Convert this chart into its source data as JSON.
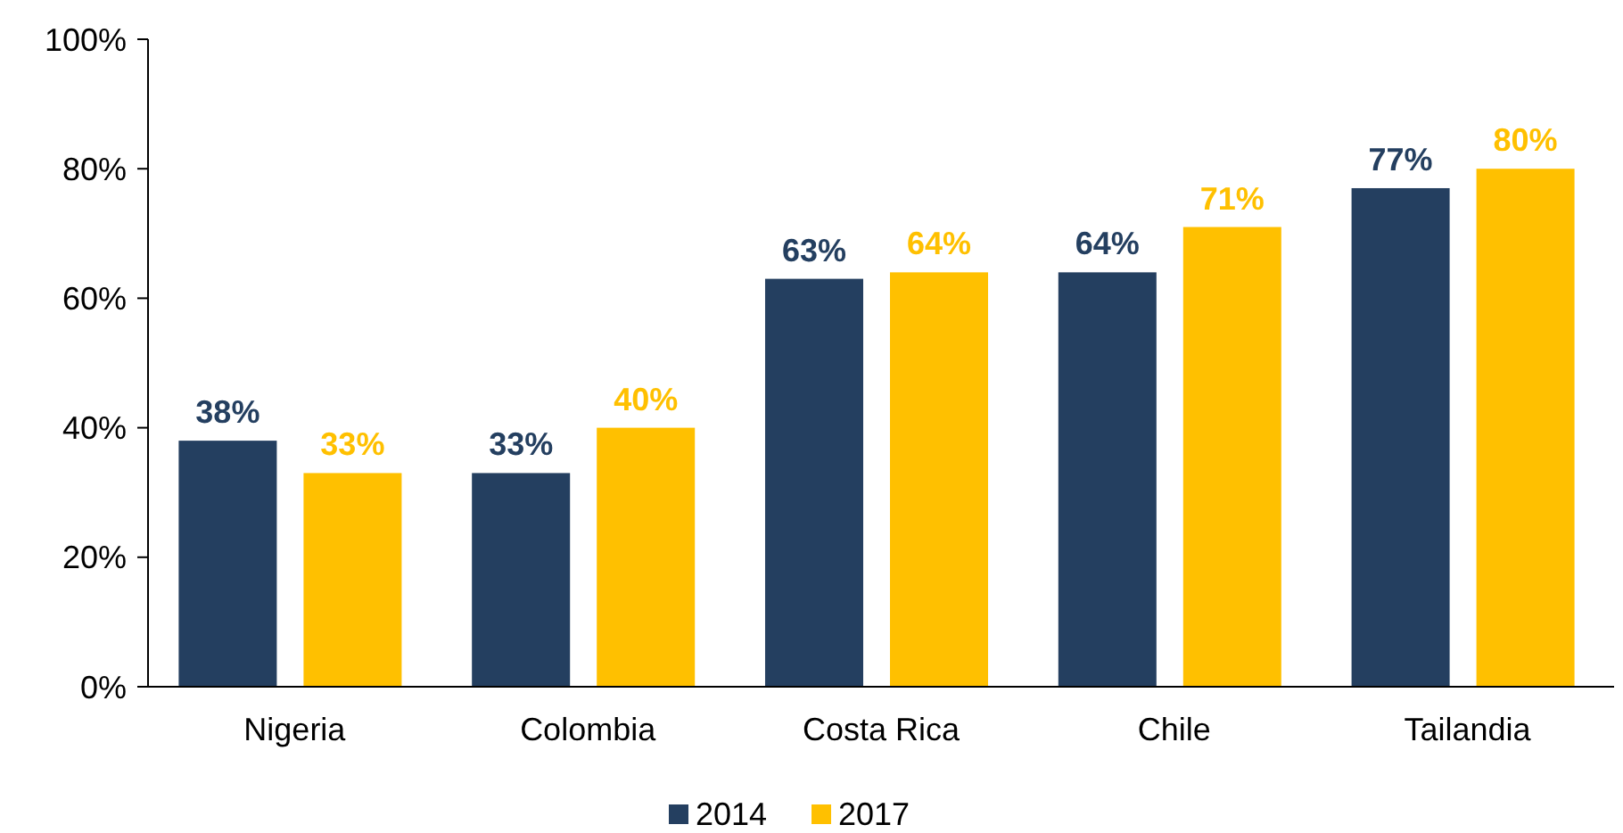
{
  "chart_data": {
    "type": "bar",
    "categories": [
      "Nigeria",
      "Colombia",
      "Costa Rica",
      "Chile",
      "Tailandia"
    ],
    "series": [
      {
        "name": "2014",
        "color": "#243f60",
        "values": [
          38,
          33,
          63,
          64,
          77
        ],
        "value_labels": [
          "38%",
          "33%",
          "63%",
          "64%",
          "77%"
        ]
      },
      {
        "name": "2017",
        "color": "#ffc000",
        "values": [
          33,
          40,
          64,
          71,
          80
        ],
        "value_labels": [
          "33%",
          "40%",
          "64%",
          "71%",
          "80%"
        ]
      }
    ],
    "ylim": [
      0,
      100
    ],
    "yticks": [
      {
        "value": 0,
        "label": "0%"
      },
      {
        "value": 20,
        "label": "20%"
      },
      {
        "value": 40,
        "label": "40%"
      },
      {
        "value": 60,
        "label": "60%"
      },
      {
        "value": 80,
        "label": "80%"
      },
      {
        "value": 100,
        "label": "100%"
      }
    ],
    "legend": "bottom",
    "grid": false
  }
}
